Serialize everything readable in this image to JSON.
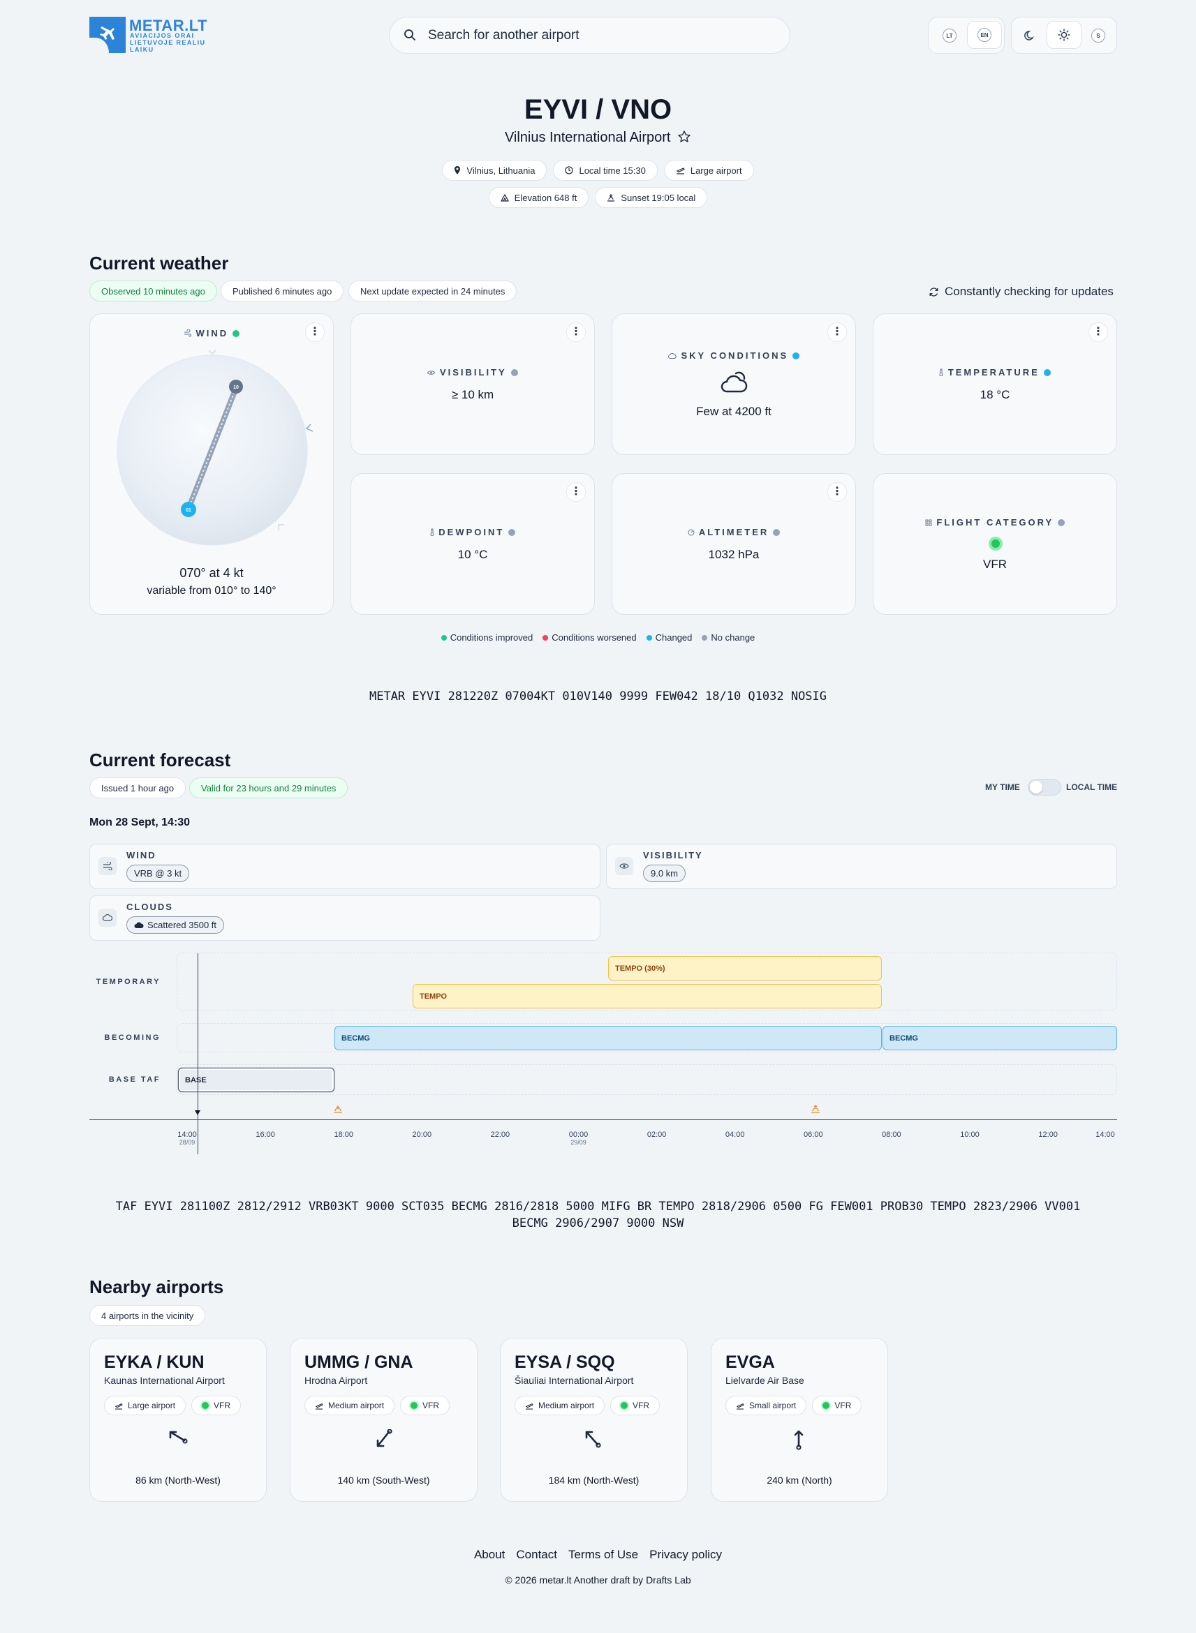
{
  "brand": {
    "title": "METAR.LT",
    "subtitle": "AVIACIJOS ORAI LIETUVOJE REALIU LAIKU"
  },
  "search": {
    "placeholder": "Search for another airport"
  },
  "lang": [
    "LT",
    "EN"
  ],
  "theme": {
    "system_label": "S"
  },
  "airport": {
    "code": "EYVI / VNO",
    "name": "Vilnius International Airport",
    "chips": [
      "Vilnius, Lithuania",
      "Local time 15:30",
      "Large airport"
    ],
    "chips2": [
      "Elevation 648 ft",
      "Sunset 19:05 local"
    ]
  },
  "weather": {
    "title": "Current weather",
    "observed": "Observed 10 minutes ago",
    "published": "Published 6 minutes ago",
    "next_update": "Next update expected in 24 minutes",
    "checking": "Constantly checking for updates",
    "wind": {
      "label": "WIND",
      "value": "070° at 4 kt",
      "variable": "variable from 010° to 140°",
      "marker_top": "10",
      "marker_bottom": "01",
      "status_color": "#22c58b"
    },
    "visibility": {
      "label": "VISIBILITY",
      "value": "≥ 10 km",
      "status_color": "#94a3b8"
    },
    "sky": {
      "label": "SKY CONDITIONS",
      "value": "Few at 4200 ft",
      "status_color": "#1eb2f0"
    },
    "temperature": {
      "label": "TEMPERATURE",
      "value": "18 °C",
      "status_color": "#1eb2f0"
    },
    "dewpoint": {
      "label": "DEWPOINT",
      "value": "10 °C",
      "status_color": "#94a3b8"
    },
    "altimeter": {
      "label": "ALTIMETER",
      "value": "1032 hPa",
      "status_color": "#94a3b8"
    },
    "flight_category": {
      "label": "FLIGHT CATEGORY",
      "value": "VFR",
      "status_color": "#94a3b8"
    },
    "legend": [
      {
        "label": "Conditions improved",
        "color": "#22c58b"
      },
      {
        "label": "Conditions worsened",
        "color": "#f43f5e"
      },
      {
        "label": "Changed",
        "color": "#1eb2f0"
      },
      {
        "label": "No change",
        "color": "#94a3b8"
      }
    ],
    "metar": "METAR EYVI 281220Z 07004KT 010V140 9999 FEW042 18/10 Q1032 NOSIG"
  },
  "forecast": {
    "title": "Current forecast",
    "issued": "Issued 1 hour ago",
    "valid": "Valid for 23 hours and 29 minutes",
    "my_time": "MY TIME",
    "local_time": "LOCAL TIME",
    "date": "Mon 28 Sept, 14:30",
    "wind": {
      "label": "WIND",
      "value": "VRB @ 3 kt"
    },
    "visibility": {
      "label": "VISIBILITY",
      "value": "9.0 km"
    },
    "clouds": {
      "label": "CLOUDS",
      "value": "Scattered 3500 ft"
    },
    "lanes": {
      "temporary": "TEMPORARY",
      "becoming": "BECOMING",
      "base": "BASE TAF"
    },
    "bars": {
      "tempo30": "TEMPO (30%)",
      "tempo": "TEMPO",
      "becmg1": "BECMG",
      "becmg2": "BECMG",
      "base": "BASE"
    },
    "ticks": [
      "14:00",
      "16:00",
      "18:00",
      "20:00",
      "22:00",
      "00:00",
      "02:00",
      "04:00",
      "06:00",
      "08:00",
      "10:00",
      "12:00",
      "14:00"
    ],
    "tick_dates": {
      "d1": "28/09",
      "d2": "29/09"
    },
    "taf": "TAF EYVI 281100Z 2812/2912 VRB03KT 9000 SCT035 BECMG 2816/2818 5000 MIFG BR TEMPO 2818/2906 0500 FG FEW001 PROB30 TEMPO 2823/2906 VV001 BECMG 2906/2907 9000 NSW"
  },
  "nearby": {
    "title": "Nearby airports",
    "count": "4 airports in the vicinity",
    "airports": [
      {
        "code": "EYKA / KUN",
        "name": "Kaunas International Airport",
        "size": "Large airport",
        "cat": "VFR",
        "dist": "86 km (North-West)"
      },
      {
        "code": "UMMG / GNA",
        "name": "Hrodna Airport",
        "size": "Medium airport",
        "cat": "VFR",
        "dist": "140 km (South-West)"
      },
      {
        "code": "EYSA / SQQ",
        "name": "Šiauliai International Airport",
        "size": "Medium airport",
        "cat": "VFR",
        "dist": "184 km (North-West)"
      },
      {
        "code": "EVGA",
        "name": "Lielvarde Air Base",
        "size": "Small airport",
        "cat": "VFR",
        "dist": "240 km (North)"
      }
    ]
  },
  "footer": {
    "links": [
      "About",
      "Contact",
      "Terms of Use",
      "Privacy policy"
    ],
    "copyright": "© 2026 metar.lt Another draft by Drafts Lab"
  }
}
